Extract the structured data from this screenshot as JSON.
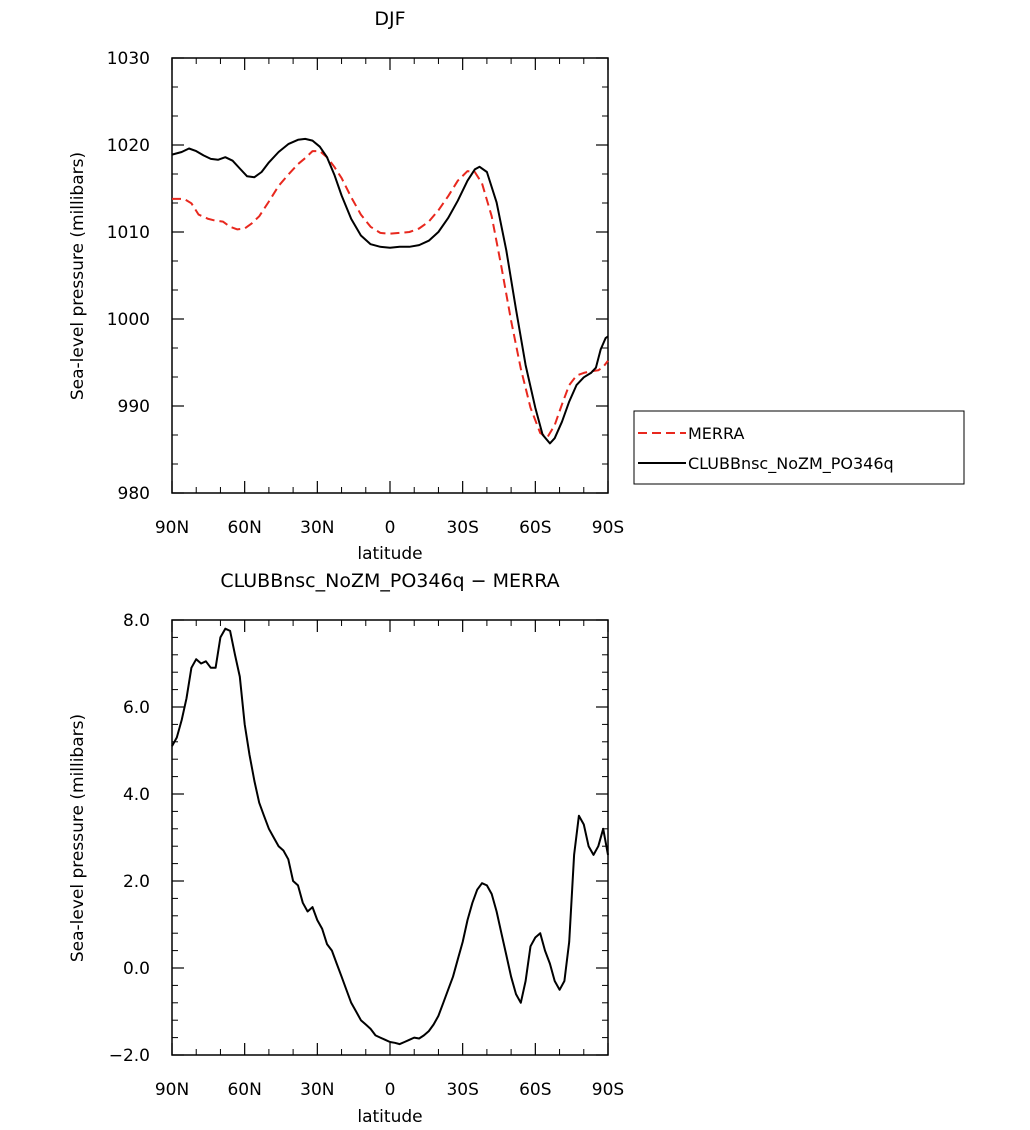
{
  "chart_data": [
    {
      "type": "line",
      "title": "DJF",
      "xlabel": "latitude",
      "ylabel": "Sea-level pressure (millibars)",
      "x_ticks": [
        "90N",
        "60N",
        "30N",
        "0",
        "30S",
        "60S",
        "90S"
      ],
      "x_tick_values": [
        90,
        60,
        30,
        0,
        -30,
        -60,
        -90
      ],
      "y_ticks": [
        "1030",
        "1020",
        "1010",
        "1000",
        "990",
        "980"
      ],
      "y_tick_values": [
        1030,
        1020,
        1010,
        1000,
        990,
        980
      ],
      "xlim": [
        90,
        -90
      ],
      "ylim": [
        980,
        1030
      ],
      "legend_position": "right",
      "series": [
        {
          "name": "MERRA",
          "color": "#e8281e",
          "dash": "dashed",
          "x": [
            90,
            85,
            82,
            79,
            75,
            72,
            69,
            66,
            63,
            60,
            57,
            54,
            50,
            46,
            42,
            38,
            35,
            32,
            29,
            26,
            23,
            20,
            16,
            12,
            8,
            4,
            0,
            -4,
            -8,
            -12,
            -16,
            -20,
            -24,
            -28,
            -32,
            -35,
            -38,
            -42,
            -46,
            -50,
            -54,
            -58,
            -62,
            -65,
            -68,
            -71,
            -74,
            -77,
            -80,
            -83,
            -86,
            -88,
            -90
          ],
          "y": [
            1013.8,
            1013.8,
            1013.3,
            1012.0,
            1011.5,
            1011.3,
            1011.2,
            1010.6,
            1010.3,
            1010.4,
            1011.0,
            1011.8,
            1013.5,
            1015.3,
            1016.6,
            1017.8,
            1018.5,
            1019.3,
            1019.3,
            1018.6,
            1017.5,
            1016.2,
            1014.0,
            1012.0,
            1010.6,
            1009.9,
            1009.8,
            1009.9,
            1010.0,
            1010.4,
            1011.2,
            1012.5,
            1014.1,
            1015.9,
            1017.0,
            1016.9,
            1015.6,
            1011.8,
            1006.0,
            999.8,
            994.3,
            989.8,
            986.9,
            986.4,
            987.8,
            990.2,
            992.4,
            993.5,
            993.8,
            994.0,
            994.1,
            994.5,
            995.2
          ]
        },
        {
          "name": "CLUBBnsc_NoZM_PO346q",
          "color": "#000000",
          "dash": "solid",
          "x": [
            90,
            86,
            83,
            80,
            77,
            74,
            71,
            68,
            65,
            62,
            59,
            56,
            53,
            50,
            46,
            42,
            38,
            35,
            32,
            29,
            26,
            23,
            20,
            16,
            12,
            8,
            4,
            0,
            -4,
            -8,
            -12,
            -16,
            -20,
            -24,
            -28,
            -32,
            -35,
            -37,
            -40,
            -44,
            -48,
            -52,
            -56,
            -60,
            -63,
            -66,
            -68,
            -71,
            -74,
            -77,
            -80,
            -83,
            -85,
            -87,
            -89,
            -90
          ],
          "y": [
            1018.9,
            1019.2,
            1019.6,
            1019.3,
            1018.8,
            1018.4,
            1018.3,
            1018.6,
            1018.2,
            1017.3,
            1016.4,
            1016.3,
            1016.9,
            1018.0,
            1019.2,
            1020.1,
            1020.6,
            1020.7,
            1020.5,
            1019.8,
            1018.6,
            1016.6,
            1014.2,
            1011.5,
            1009.6,
            1008.6,
            1008.3,
            1008.2,
            1008.3,
            1008.3,
            1008.5,
            1009.0,
            1010.0,
            1011.6,
            1013.6,
            1015.9,
            1017.2,
            1017.5,
            1016.9,
            1013.4,
            1007.9,
            1001.1,
            994.7,
            989.8,
            986.7,
            985.7,
            986.3,
            988.2,
            990.5,
            992.4,
            993.3,
            993.8,
            994.4,
            996.5,
            997.8,
            998.0
          ]
        }
      ]
    },
    {
      "type": "line",
      "title": "CLUBBnsc_NoZM_PO346q − MERRA",
      "xlabel": "latitude",
      "ylabel": "Sea-level pressure (millibars)",
      "x_ticks": [
        "90N",
        "60N",
        "30N",
        "0",
        "30S",
        "60S",
        "90S"
      ],
      "x_tick_values": [
        90,
        60,
        30,
        0,
        -30,
        -60,
        -90
      ],
      "y_ticks": [
        "8.0",
        "6.0",
        "4.0",
        "2.0",
        "0.0",
        "−2.0"
      ],
      "y_tick_values": [
        8,
        6,
        4,
        2,
        0,
        -2
      ],
      "xlim": [
        90,
        -90
      ],
      "ylim": [
        -2,
        8
      ],
      "series": [
        {
          "color": "#000000",
          "dash": "solid",
          "x": [
            90,
            88,
            86,
            84,
            82,
            80,
            78,
            76,
            74,
            72,
            70,
            68,
            66,
            64,
            62,
            60,
            58,
            56,
            54,
            52,
            50,
            48,
            46,
            44,
            42,
            40,
            38,
            36,
            34,
            32,
            30,
            28,
            26,
            24,
            22,
            20,
            18,
            16,
            14,
            12,
            10,
            8,
            6,
            4,
            2,
            0,
            -2,
            -4,
            -6,
            -8,
            -10,
            -12,
            -14,
            -16,
            -18,
            -20,
            -22,
            -24,
            -26,
            -28,
            -30,
            -32,
            -34,
            -36,
            -38,
            -40,
            -42,
            -44,
            -46,
            -48,
            -50,
            -52,
            -54,
            -56,
            -58,
            -60,
            -62,
            -64,
            -66,
            -68,
            -70,
            -72,
            -74,
            -76,
            -78,
            -80,
            -82,
            -84,
            -86,
            -88,
            -90
          ],
          "y": [
            5.1,
            5.3,
            5.7,
            6.2,
            6.9,
            7.1,
            7.0,
            7.05,
            6.9,
            6.9,
            7.6,
            7.8,
            7.75,
            7.2,
            6.7,
            5.6,
            4.9,
            4.3,
            3.8,
            3.5,
            3.2,
            3.0,
            2.8,
            2.7,
            2.5,
            2.0,
            1.9,
            1.5,
            1.3,
            1.4,
            1.1,
            0.9,
            0.55,
            0.4,
            0.1,
            -0.2,
            -0.5,
            -0.8,
            -1.0,
            -1.2,
            -1.3,
            -1.4,
            -1.55,
            -1.6,
            -1.65,
            -1.7,
            -1.72,
            -1.75,
            -1.7,
            -1.65,
            -1.6,
            -1.62,
            -1.55,
            -1.45,
            -1.3,
            -1.1,
            -0.8,
            -0.5,
            -0.2,
            0.2,
            0.6,
            1.1,
            1.5,
            1.8,
            1.95,
            1.9,
            1.7,
            1.3,
            0.8,
            0.3,
            -0.2,
            -0.6,
            -0.8,
            -0.3,
            0.5,
            0.7,
            0.8,
            0.4,
            0.1,
            -0.3,
            -0.5,
            -0.3,
            0.6,
            2.6,
            3.5,
            3.3,
            2.8,
            2.6,
            2.8,
            3.2,
            2.6
          ]
        }
      ]
    }
  ]
}
